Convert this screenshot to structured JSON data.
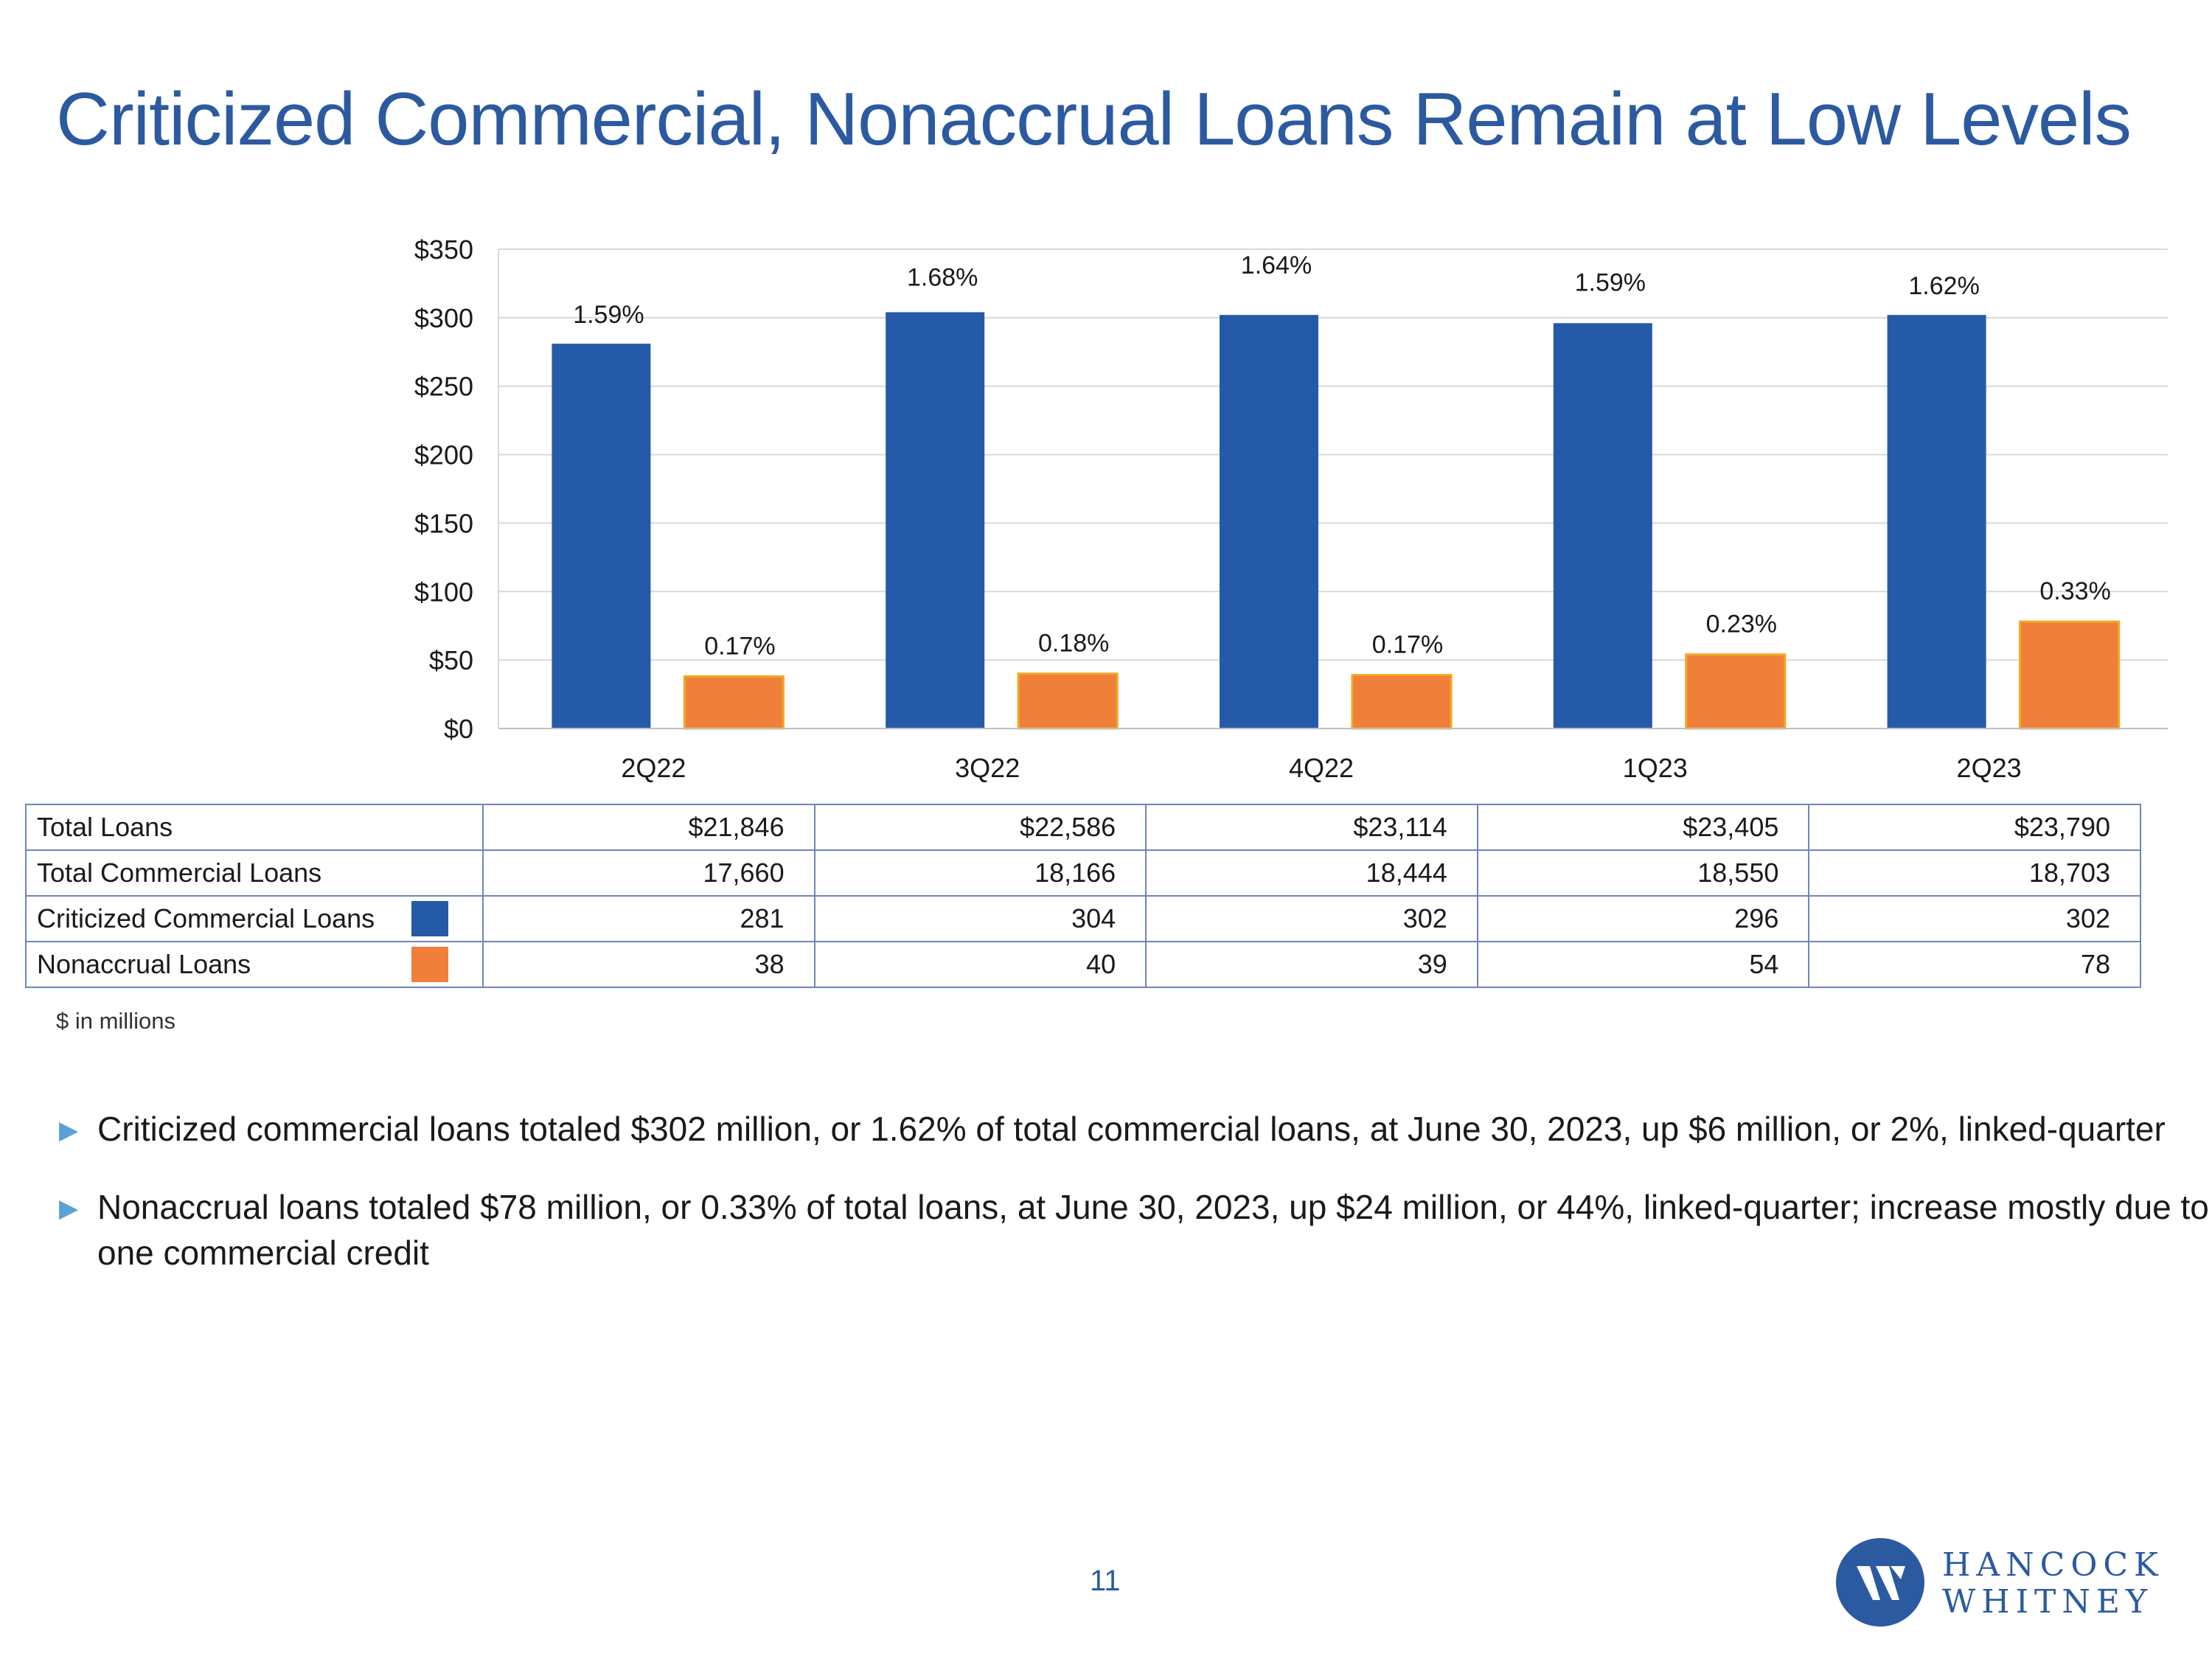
{
  "title": "Criticized Commercial, Nonaccrual Loans Remain at Low Levels",
  "colors": {
    "criticized": "#255aa8",
    "nonaccrual": "#f07f3a",
    "accent": "#2c5aa0"
  },
  "chart_data": {
    "type": "bar",
    "categories": [
      "2Q22",
      "3Q22",
      "4Q22",
      "1Q23",
      "2Q23"
    ],
    "series": [
      {
        "name": "Criticized Commercial Loans",
        "values": [
          281,
          304,
          302,
          296,
          302
        ],
        "labels": [
          "1.59%",
          "1.68%",
          "1.64%",
          "1.59%",
          "1.62%"
        ]
      },
      {
        "name": "Nonaccrual Loans",
        "values": [
          38,
          40,
          39,
          54,
          78
        ],
        "labels": [
          "0.17%",
          "0.18%",
          "0.17%",
          "0.23%",
          "0.33%"
        ]
      }
    ],
    "ylim": [
      0,
      350
    ],
    "yticks": [
      "$0",
      "$50",
      "$100",
      "$150",
      "$200",
      "$250",
      "$300",
      "$350"
    ],
    "ytick_values": [
      0,
      50,
      100,
      150,
      200,
      250,
      300,
      350
    ],
    "grid": true
  },
  "table": {
    "rows": [
      {
        "label": "Total Loans",
        "values": [
          "$21,846",
          "$22,586",
          "$23,114",
          "$23,405",
          "$23,790"
        ]
      },
      {
        "label": "Total Commercial Loans",
        "values": [
          "17,660",
          "18,166",
          "18,444",
          "18,550",
          "18,703"
        ]
      },
      {
        "label": "Criticized Commercial Loans",
        "values": [
          "281",
          "304",
          "302",
          "296",
          "302"
        ]
      },
      {
        "label": "Nonaccrual Loans",
        "values": [
          "38",
          "40",
          "39",
          "54",
          "78"
        ]
      }
    ]
  },
  "note": "$ in millions",
  "bullets": [
    "Criticized commercial loans totaled $302 million, or 1.62% of total commercial loans, at June 30, 2023, up $6 million, or 2%, linked-quarter",
    "Nonaccrual loans totaled $78 million, or 0.33% of total loans, at June 30, 2023, up $24 million, or 44%, linked-quarter; increase mostly due to one commercial credit"
  ],
  "page_number": "11",
  "logo": {
    "line1": "HANCOCK",
    "line2": "WHITNEY"
  }
}
